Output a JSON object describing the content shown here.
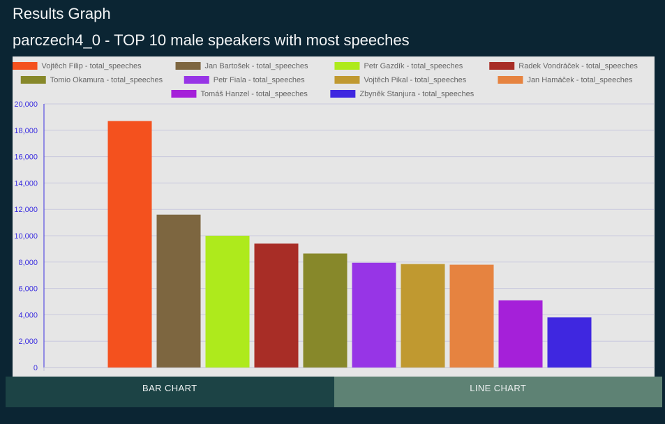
{
  "page": {
    "heading": "Results Graph",
    "chart_title": "parczech4_0 - TOP 10 male speakers with most speeches"
  },
  "tabs": {
    "bar_label": "BAR CHART",
    "line_label": "LINE CHART",
    "active": "bar"
  },
  "chart_data": {
    "type": "bar",
    "title": "",
    "xlabel": "",
    "ylabel": "",
    "ylim": [
      0,
      20000
    ],
    "yticks": [
      0,
      2000,
      4000,
      6000,
      8000,
      10000,
      12000,
      14000,
      16000,
      18000,
      20000
    ],
    "grid": true,
    "legend_position": "top",
    "series": [
      {
        "name": "Vojtěch Filip - total_speeches",
        "value": 18700,
        "color": "#f4511e"
      },
      {
        "name": "Jan Bartošek - total_speeches",
        "value": 11600,
        "color": "#7d6640"
      },
      {
        "name": "Petr Gazdík - total_speeches",
        "value": 10000,
        "color": "#aeea1c"
      },
      {
        "name": "Radek Vondráček - total_speeches",
        "value": 9400,
        "color": "#a82d26"
      },
      {
        "name": "Tomio Okamura - total_speeches",
        "value": 8650,
        "color": "#87882a"
      },
      {
        "name": "Petr Fiala - total_speeches",
        "value": 7950,
        "color": "#9735e6"
      },
      {
        "name": "Vojtěch Pikal - total_speeches",
        "value": 7850,
        "color": "#c09930"
      },
      {
        "name": "Jan Hamáček - total_speeches",
        "value": 7800,
        "color": "#e68340"
      },
      {
        "name": "Tomáš Hanzel - total_speeches",
        "value": 5100,
        "color": "#a520d9"
      },
      {
        "name": "Zbyněk Stanjura - total_speeches",
        "value": 3800,
        "color": "#3f27e0"
      }
    ]
  }
}
